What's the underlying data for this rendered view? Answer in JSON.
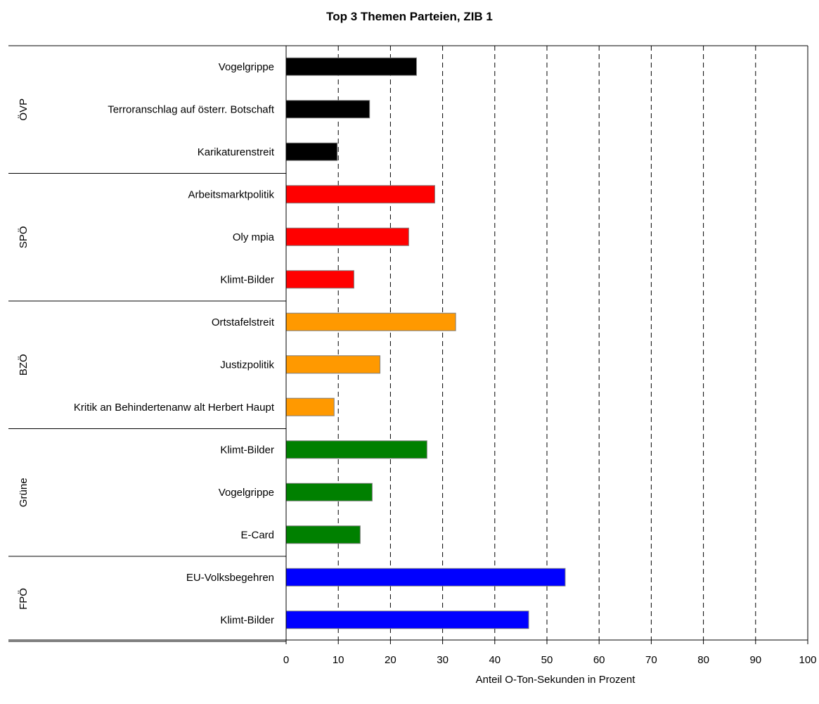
{
  "chart_data": {
    "type": "bar",
    "orientation": "horizontal",
    "title": "Top 3 Themen Parteien, ZIB 1",
    "xlabel": "Anteil O-Ton-Sekunden in Prozent",
    "xlim": [
      0,
      100
    ],
    "xticks": [
      0,
      10,
      20,
      30,
      40,
      50,
      60,
      70,
      80,
      90,
      100
    ],
    "grid": "vertical dashed",
    "groups": [
      {
        "name": "ÖVP",
        "color": "#000000",
        "bars": [
          {
            "label": "Vogelgrippe",
            "value": 25
          },
          {
            "label": "Terroranschlag auf österr. Botschaft",
            "value": 16
          },
          {
            "label": "Karikaturenstreit",
            "value": 9.8
          }
        ]
      },
      {
        "name": "SPÖ",
        "color": "#ff0000",
        "bars": [
          {
            "label": "Arbeitsmarktpolitik",
            "value": 28.5
          },
          {
            "label": "Oly mpia",
            "value": 23.5
          },
          {
            "label": "Klimt-Bilder",
            "value": 13
          }
        ]
      },
      {
        "name": "BZÖ",
        "color": "#ff9900",
        "bars": [
          {
            "label": "Ortstafelstreit",
            "value": 32.5
          },
          {
            "label": "Justizpolitik",
            "value": 18
          },
          {
            "label": "Kritik an Behindertenanw alt Herbert Haupt",
            "value": 9.2
          }
        ]
      },
      {
        "name": "Grüne",
        "color": "#008000",
        "bars": [
          {
            "label": "Klimt-Bilder",
            "value": 27
          },
          {
            "label": "Vogelgrippe",
            "value": 16.5
          },
          {
            "label": "E-Card",
            "value": 14.2
          }
        ]
      },
      {
        "name": "FPÖ",
        "color": "#0000ff",
        "bars": [
          {
            "label": "EU-Volksbegehren",
            "value": 53.5
          },
          {
            "label": "Klimt-Bilder",
            "value": 46.5
          }
        ]
      }
    ]
  }
}
